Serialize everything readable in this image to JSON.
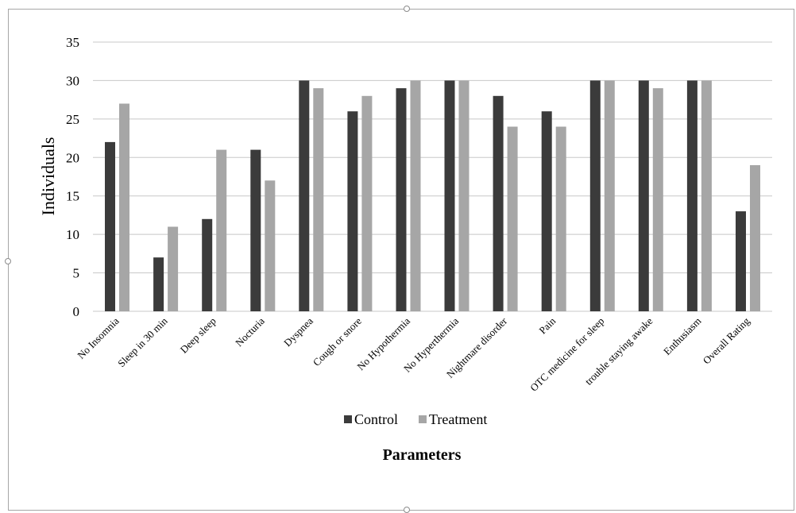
{
  "colors": {
    "control": "#3b3b3b",
    "treatment": "#a6a6a6"
  },
  "chart_data": {
    "type": "bar",
    "categories": [
      "No Insomnia",
      "Sleep in 30 min",
      "Deep sleep",
      "Nocturia",
      "Dyspnea",
      "Cough or snore",
      "No Hypothermia",
      "No Hyperthermia",
      "Nightmare disorder",
      "Pain",
      "OTC medicine for sleep",
      "trouble staying awake",
      "Enthusiasm",
      "Overall Rating"
    ],
    "series": [
      {
        "name": "Control",
        "color": "#3b3b3b",
        "values": [
          22,
          7,
          12,
          21,
          30,
          26,
          29,
          30,
          28,
          26,
          30,
          30,
          30,
          13
        ]
      },
      {
        "name": "Treatment",
        "color": "#a6a6a6",
        "values": [
          27,
          11,
          21,
          17,
          29,
          28,
          30,
          30,
          24,
          24,
          30,
          29,
          30,
          19
        ]
      }
    ],
    "xlabel": "Parameters",
    "ylabel": "Individuals",
    "ylim": [
      0,
      35
    ],
    "yticks": [
      0,
      5,
      10,
      15,
      20,
      25,
      30,
      35
    ],
    "grid": true,
    "legend": "bottom"
  }
}
